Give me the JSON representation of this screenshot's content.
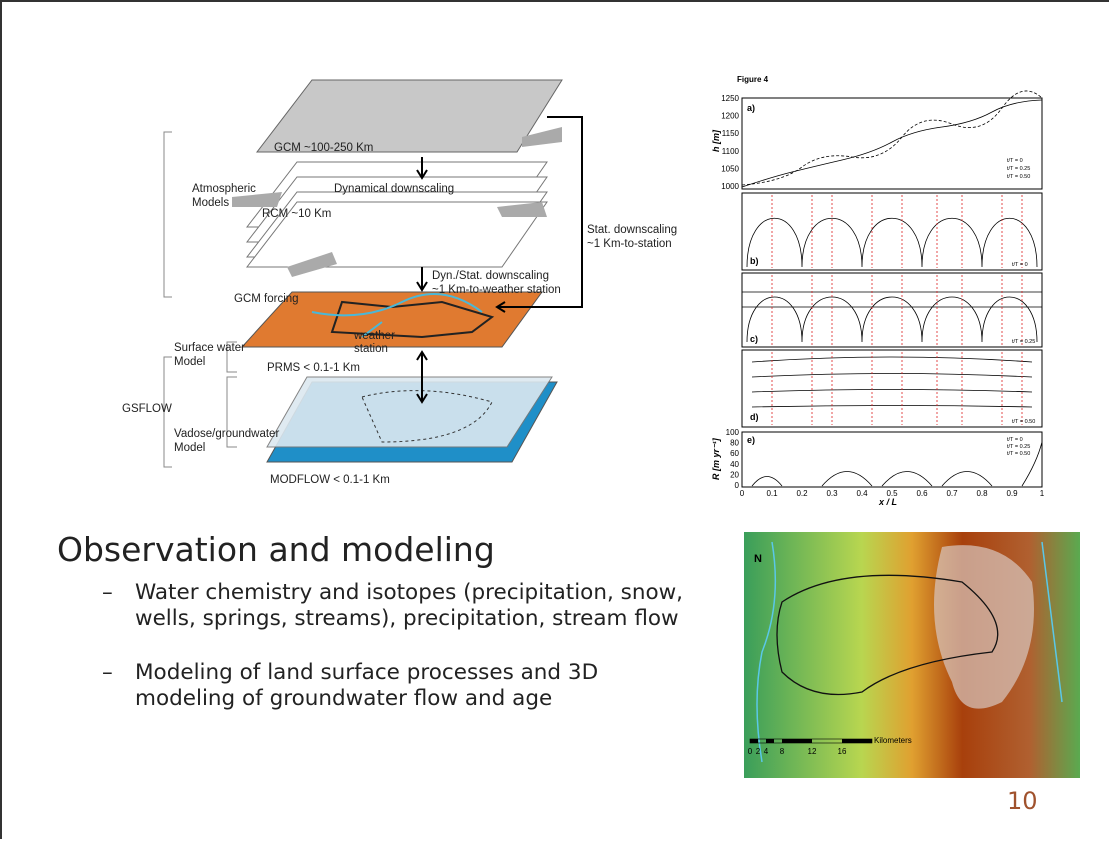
{
  "slide": {
    "title": "Observation and modeling",
    "bullet_marker": "–",
    "bullets": [
      "Water chemistry and isotopes (precipitation, snow, wells, springs, streams), precipitation, stream flow",
      "Modeling of land surface processes and 3D modeling of groundwater flow and age"
    ],
    "page_number": "10"
  },
  "diagram": {
    "gcm": "GCM ~100-250 Km",
    "dynamical": "Dynamical downscaling",
    "atmospheric": [
      "Atmospheric",
      "Models"
    ],
    "rcm": "RCM ~10 Km",
    "stat": [
      "Stat. downscaling",
      "~1 Km-to-station"
    ],
    "dynstat": [
      "Dyn./Stat. downscaling",
      "~1 Km-to-weather station"
    ],
    "forcing": "GCM forcing",
    "weather": [
      "weather",
      "station"
    ],
    "surface": [
      "Surface water",
      "Model"
    ],
    "prms": "PRMS < 0.1-1 Km",
    "gsflow": "GSFLOW",
    "vadose": [
      "Vadose/groundwater",
      "Model"
    ],
    "modflow": "MODFLOW < 0.1-1 Km"
  },
  "figure": {
    "title": "Figure 4",
    "panels": [
      "a)",
      "b)",
      "c)",
      "d)",
      "e)"
    ],
    "h_label": "h [m]",
    "h_ticks": [
      "1250",
      "1200",
      "1150",
      "1100",
      "1050",
      "1000"
    ],
    "R_label": "R [m yr⁻¹]",
    "R_ticks": [
      "100",
      "80",
      "60",
      "40",
      "20",
      "0"
    ],
    "x_label": "x / L",
    "x_ticks": [
      "0",
      "0.1",
      "0.2",
      "0.3",
      "0.4",
      "0.5",
      "0.6",
      "0.7",
      "0.8",
      "0.9",
      "1"
    ],
    "legend": [
      "t/T = 0",
      "t/T = 0.25",
      "t/T = 0.50"
    ]
  },
  "map": {
    "north": "N",
    "scale_label": "Kilometers",
    "scale_ticks": [
      "0",
      "2",
      "4",
      "8",
      "12",
      "16"
    ]
  }
}
